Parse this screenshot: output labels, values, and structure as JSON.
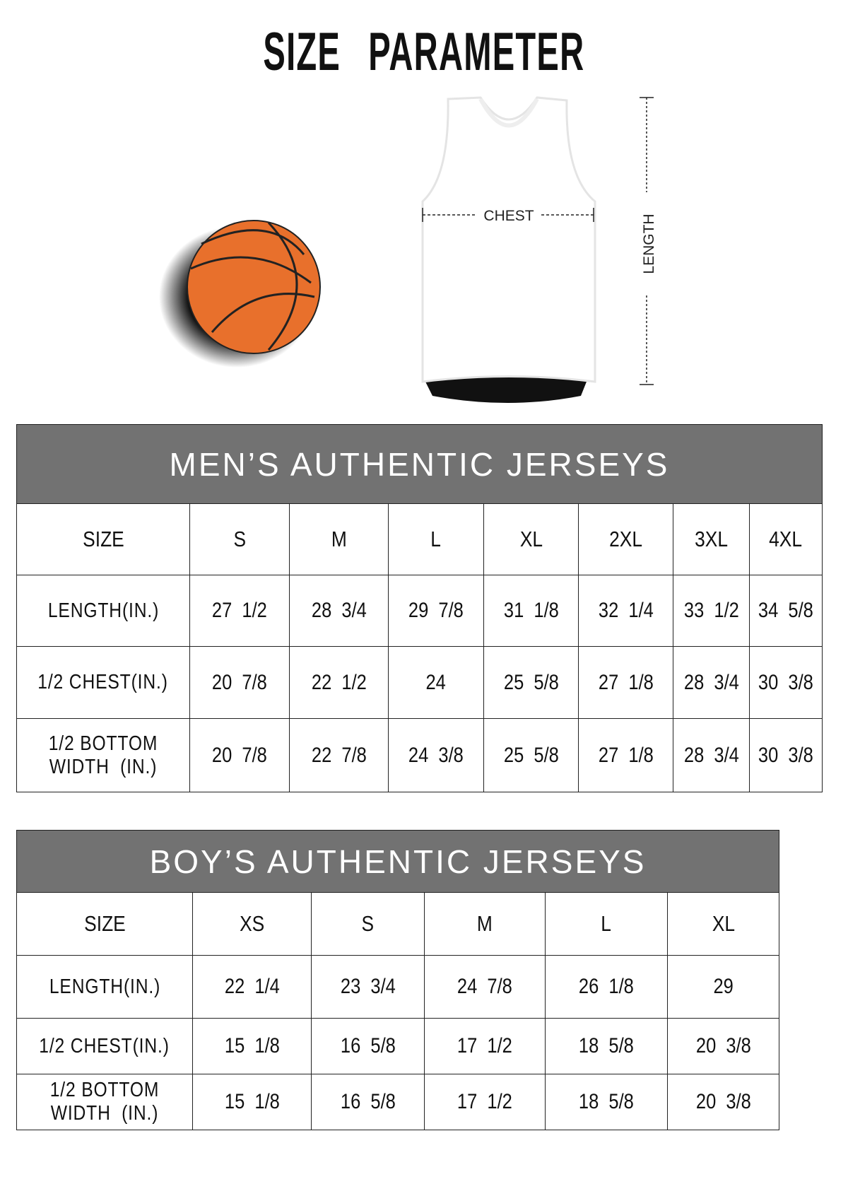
{
  "title": "SIZE PARAMETER",
  "diagram": {
    "chest_label": "CHEST",
    "length_label": "LENGTH",
    "ball_color": "#e8702c",
    "header_gray": "#727272"
  },
  "mens": {
    "title": "MEN’S AUTHENTIC JERSEYS",
    "size_label": "SIZE",
    "sizes": [
      "S",
      "M",
      "L",
      "XL",
      "2XL",
      "3XL",
      "4XL"
    ],
    "rows": [
      {
        "label": "LENGTH(IN.)",
        "values": [
          "27  1/2",
          "28  3/4",
          "29  7/8",
          "31  1/8",
          "32  1/4",
          "33  1/2",
          "34  5/8"
        ]
      },
      {
        "label": "1/2 CHEST(IN.)",
        "values": [
          "20  7/8",
          "22  1/2",
          "24",
          "25  5/8",
          "27  1/8",
          "28  3/4",
          "30  3/8"
        ]
      },
      {
        "label": "1/2 BOTTOM WIDTH  (IN.)",
        "values": [
          "20  7/8",
          "22  7/8",
          "24  3/8",
          "25  5/8",
          "27  1/8",
          "28  3/4",
          "30  3/8"
        ]
      }
    ]
  },
  "boys": {
    "title": "BOY’S AUTHENTIC JERSEYS",
    "size_label": "SIZE",
    "sizes": [
      "XS",
      "S",
      "M",
      "L",
      "XL"
    ],
    "rows": [
      {
        "label": "LENGTH(IN.)",
        "values": [
          "22  1/4",
          "23  3/4",
          "24  7/8",
          "26  1/8",
          "29"
        ]
      },
      {
        "label": "1/2 CHEST(IN.)",
        "values": [
          "15  1/8",
          "16  5/8",
          "17  1/2",
          "18  5/8",
          "20  3/8"
        ]
      },
      {
        "label": "1/2 BOTTOM WIDTH  (IN.)",
        "values": [
          "15  1/8",
          "16  5/8",
          "17  1/2",
          "18  5/8",
          "20  3/8"
        ]
      }
    ]
  }
}
